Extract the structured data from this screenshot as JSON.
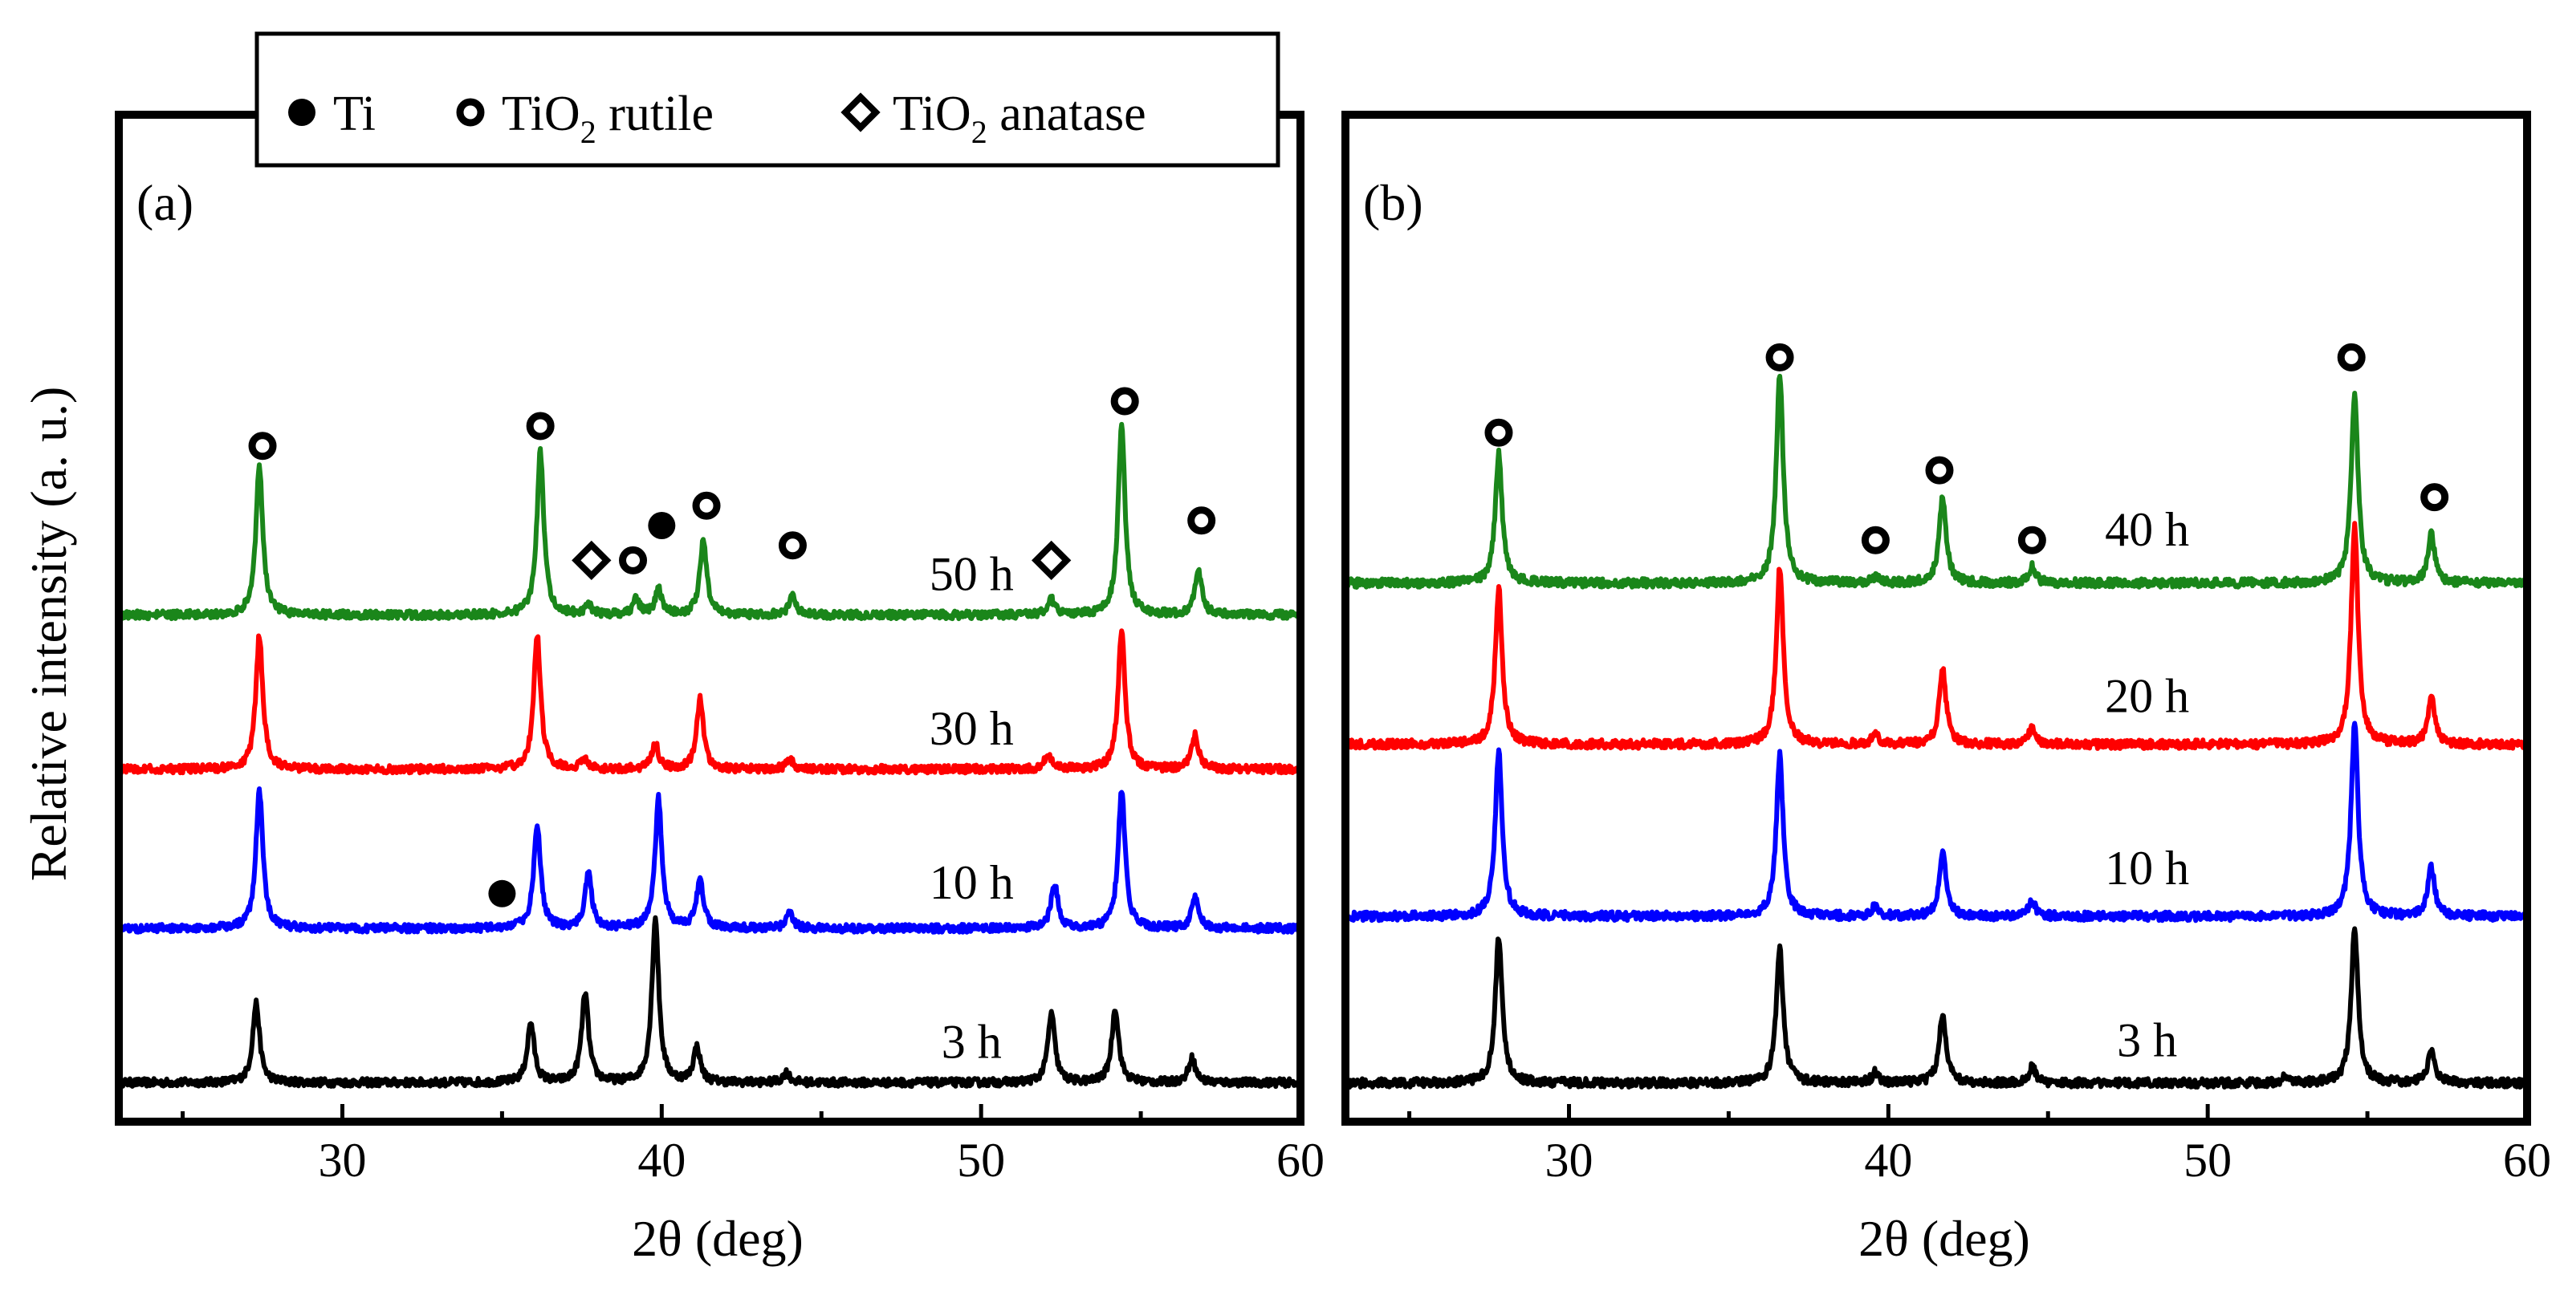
{
  "figure": {
    "ylabel": "Relative intensity (a. u.)",
    "legend": {
      "position": "top-center",
      "entries": [
        {
          "marker": "filled-circle",
          "label": "Ti",
          "base": "Ti",
          "sub": "",
          "rest": ""
        },
        {
          "marker": "open-circle",
          "label": "TiO2 rutile",
          "base": "TiO",
          "sub": "2",
          "rest": " rutile"
        },
        {
          "marker": "open-diamond",
          "label": "TiO2 anatase",
          "base": "TiO",
          "sub": "2",
          "rest": " anatase"
        }
      ]
    },
    "colors": {
      "3 h": "#000000",
      "10 h": "#0000ff",
      "20 h": "#ff0000",
      "30 h": "#ff0000",
      "40 h": "#1a861a",
      "50 h": "#1a861a"
    }
  },
  "chart_data": [
    {
      "panel": "(a)",
      "type": "line",
      "title": "",
      "xlabel": "2θ (deg)",
      "ylabel": "Relative intensity (a. u.)",
      "xlim": [
        23,
        60
      ],
      "xticks": [
        30,
        40,
        50,
        60
      ],
      "ylim": [
        0,
        100
      ],
      "grid": false,
      "series": [
        {
          "name": "3 h",
          "color": "#000000",
          "baseline": 3,
          "peaks": [
            [
              27.3,
              16
            ],
            [
              35.9,
              12
            ],
            [
              37.6,
              18
            ],
            [
              39.8,
              33
            ],
            [
              41.1,
              7
            ],
            [
              43.9,
              2
            ],
            [
              52.2,
              14
            ],
            [
              54.2,
              15
            ],
            [
              56.6,
              5
            ]
          ]
        },
        {
          "name": "10 h",
          "color": "#0000ff",
          "baseline": 34,
          "peaks": [
            [
              27.4,
              28
            ],
            [
              36.1,
              21
            ],
            [
              37.7,
              11
            ],
            [
              39.9,
              26
            ],
            [
              41.2,
              10
            ],
            [
              44.0,
              3
            ],
            [
              52.3,
              9
            ],
            [
              54.4,
              28
            ],
            [
              56.7,
              6
            ]
          ]
        },
        {
          "name": "30 h",
          "color": "#ff0000",
          "baseline": 66,
          "peaks": [
            [
              27.4,
              27
            ],
            [
              36.1,
              27
            ],
            [
              37.6,
              2
            ],
            [
              39.8,
              5
            ],
            [
              41.2,
              14
            ],
            [
              44.0,
              2
            ],
            [
              52.1,
              3
            ],
            [
              54.4,
              28
            ],
            [
              56.7,
              7
            ]
          ]
        },
        {
          "name": "50 h",
          "color": "#1a861a",
          "baseline": 97,
          "peaks": [
            [
              27.4,
              30
            ],
            [
              36.2,
              33
            ],
            [
              37.7,
              2
            ],
            [
              39.2,
              3
            ],
            [
              39.9,
              5
            ],
            [
              41.3,
              15
            ],
            [
              44.1,
              4
            ],
            [
              52.2,
              3
            ],
            [
              54.4,
              38
            ],
            [
              56.8,
              9
            ]
          ]
        }
      ],
      "annotations": [
        {
          "marker": "open-circle",
          "x": 27.5,
          "y": 131
        },
        {
          "marker": "open-circle",
          "x": 36.2,
          "y": 135
        },
        {
          "marker": "open-diamond",
          "x": 37.8,
          "y": 108
        },
        {
          "marker": "open-circle",
          "x": 39.1,
          "y": 108
        },
        {
          "marker": "filled-circle",
          "x": 40.0,
          "y": 115
        },
        {
          "marker": "open-circle",
          "x": 41.4,
          "y": 119
        },
        {
          "marker": "open-circle",
          "x": 44.1,
          "y": 111
        },
        {
          "marker": "open-diamond",
          "x": 52.2,
          "y": 108
        },
        {
          "marker": "open-circle",
          "x": 54.5,
          "y": 140
        },
        {
          "marker": "open-circle",
          "x": 56.9,
          "y": 116
        },
        {
          "marker": "filled-circle",
          "x": 35.0,
          "y": 41
        }
      ],
      "labels": [
        {
          "text": "3 h",
          "x": 49.7,
          "y": 8
        },
        {
          "text": "10 h",
          "x": 49.7,
          "y": 40
        },
        {
          "text": "30 h",
          "x": 49.7,
          "y": 71
        },
        {
          "text": "50 h",
          "x": 49.7,
          "y": 102
        }
      ]
    },
    {
      "panel": "(b)",
      "type": "line",
      "title": "",
      "xlabel": "2θ (deg)",
      "ylabel": "",
      "xlim": [
        23,
        60
      ],
      "xticks": [
        30,
        40,
        50,
        60
      ],
      "ylim": [
        0,
        100
      ],
      "grid": false,
      "series": [
        {
          "name": "3 h",
          "color": "#000000",
          "baseline": 3,
          "peaks": [
            [
              27.8,
              27
            ],
            [
              36.6,
              25
            ],
            [
              39.6,
              2
            ],
            [
              41.7,
              13
            ],
            [
              44.5,
              3
            ],
            [
              52.4,
              1
            ],
            [
              54.6,
              29
            ],
            [
              57.0,
              6
            ]
          ]
        },
        {
          "name": "10 h",
          "color": "#0000ff",
          "baseline": 34,
          "peaks": [
            [
              27.8,
              31
            ],
            [
              36.6,
              30
            ],
            [
              39.6,
              2
            ],
            [
              41.7,
              12
            ],
            [
              44.5,
              3
            ],
            [
              54.6,
              36
            ],
            [
              57.0,
              9
            ]
          ]
        },
        {
          "name": "20 h",
          "color": "#ff0000",
          "baseline": 66,
          "peaks": [
            [
              27.8,
              29
            ],
            [
              36.6,
              33
            ],
            [
              39.6,
              2
            ],
            [
              41.7,
              14
            ],
            [
              44.5,
              3
            ],
            [
              54.6,
              41
            ],
            [
              57.0,
              9
            ]
          ]
        },
        {
          "name": "40 h",
          "color": "#1a861a",
          "baseline": 96,
          "peaks": [
            [
              27.8,
              24
            ],
            [
              36.6,
              39
            ],
            [
              39.6,
              1
            ],
            [
              41.7,
              16
            ],
            [
              44.5,
              3
            ],
            [
              54.6,
              35
            ],
            [
              57.0,
              9
            ]
          ]
        }
      ],
      "annotations": [
        {
          "marker": "open-circle",
          "x": 27.8,
          "y": 124
        },
        {
          "marker": "open-circle",
          "x": 36.6,
          "y": 138
        },
        {
          "marker": "open-circle",
          "x": 39.6,
          "y": 104
        },
        {
          "marker": "open-circle",
          "x": 41.6,
          "y": 117
        },
        {
          "marker": "open-circle",
          "x": 44.5,
          "y": 104
        },
        {
          "marker": "open-circle",
          "x": 54.5,
          "y": 138
        },
        {
          "marker": "open-circle",
          "x": 57.1,
          "y": 112
        }
      ],
      "labels": [
        {
          "text": "3 h",
          "x": 48.1,
          "y": 8
        },
        {
          "text": "10 h",
          "x": 48.1,
          "y": 40
        },
        {
          "text": "20 h",
          "x": 48.1,
          "y": 72
        },
        {
          "text": "40 h",
          "x": 48.1,
          "y": 103
        }
      ]
    }
  ]
}
